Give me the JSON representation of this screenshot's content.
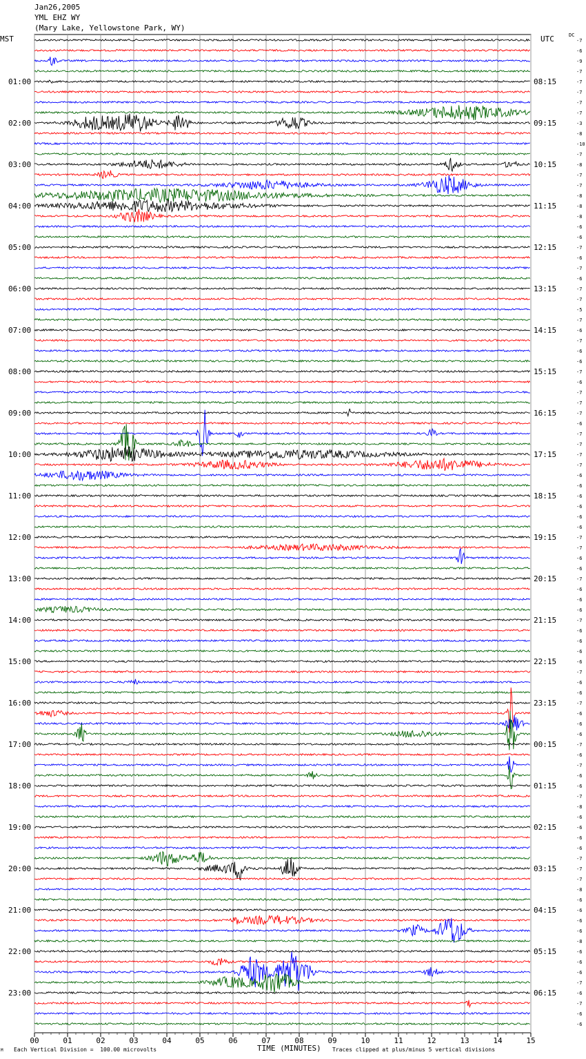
{
  "header": {
    "date": "Jan26,2005",
    "station": "YML EHZ WY",
    "location": "(Mary Lake, Yellowstone Park, WY)"
  },
  "left_axis_title": "MST",
  "right_axis_title": "UTC",
  "dc_label": "DC",
  "footer": {
    "scale_note": "Each Vertical Division =  100.00 microvolts",
    "clip_note": "Traces clipped at plus/minus 5 vertical divisions",
    "corner_mark": "M"
  },
  "chart_data": {
    "type": "line",
    "title": "",
    "xlabel": "TIME (MINUTES)",
    "ylabel": "",
    "xlim": [
      0,
      15
    ],
    "x_ticks": [
      "00",
      "01",
      "02",
      "03",
      "04",
      "05",
      "06",
      "07",
      "08",
      "09",
      "10",
      "11",
      "12",
      "13",
      "14",
      "15"
    ],
    "grid": true,
    "left_time_labels": [
      "01:00",
      "02:00",
      "03:00",
      "04:00",
      "05:00",
      "06:00",
      "07:00",
      "08:00",
      "09:00",
      "10:00",
      "11:00",
      "12:00",
      "13:00",
      "14:00",
      "15:00",
      "16:00",
      "17:00",
      "18:00",
      "19:00",
      "20:00",
      "21:00",
      "22:00",
      "23:00"
    ],
    "right_time_labels": [
      "08:15",
      "09:15",
      "10:15",
      "11:15",
      "12:15",
      "13:15",
      "14:15",
      "15:15",
      "16:15",
      "17:15",
      "18:15",
      "19:15",
      "20:15",
      "21:15",
      "22:15",
      "23:15",
      "00:15",
      "01:15",
      "02:15",
      "03:15",
      "04:15",
      "05:15",
      "06:15"
    ],
    "trace_colors": [
      "#000000",
      "#ff0000",
      "#0000ff",
      "#006400"
    ],
    "trace_count": 96,
    "dc_offsets": [
      "-7",
      "-6",
      "-9",
      "-7",
      "-7",
      "-7",
      "-7",
      "-7",
      "-3",
      "-8",
      "-10",
      "-7",
      "-8",
      "-7",
      "-7",
      "-8",
      "-8",
      "-8",
      "-6",
      "-6",
      "-7",
      "-6",
      "-7",
      "-6",
      "-7",
      "-7",
      "-5",
      "-7",
      "-6",
      "-7",
      "-6",
      "-6",
      "-7",
      "-6",
      "-7",
      "-7",
      "-7",
      "-6",
      "-7",
      "-7",
      "-7",
      "-7",
      "-6",
      "-6",
      "-6",
      "-6",
      "-6",
      "-6",
      "-7",
      "-7",
      "-6",
      "-6",
      "-7",
      "-6",
      "-6",
      "-6",
      "-7",
      "-6",
      "-6",
      "-6",
      "-6",
      "-7",
      "-6",
      "-6",
      "-7",
      "-6",
      "-6",
      "-6",
      "-7",
      "-6",
      "-7",
      "-6",
      "-6",
      "-7",
      "-8",
      "-6",
      "-6",
      "-6",
      "-6",
      "-7",
      "-7",
      "-7",
      "-8",
      "-6",
      "-6",
      "-6",
      "-6",
      "-8",
      "-6",
      "-6",
      "-6",
      "-7",
      "-6",
      "-7",
      "-6",
      "-6"
    ],
    "events": [
      {
        "trace": 2,
        "minute": 0.55,
        "amplitude": 7,
        "width": 0.3
      },
      {
        "trace": 4,
        "minute": 0.5,
        "amplitude": 4,
        "width": 0.1
      },
      {
        "trace": 7,
        "minute": 13.0,
        "amplitude": 10,
        "width": 3.5
      },
      {
        "trace": 8,
        "minute": 3.0,
        "amplitude": 14,
        "width": 1.4
      },
      {
        "trace": 8,
        "minute": 4.4,
        "amplitude": 14,
        "width": 0.6
      },
      {
        "trace": 8,
        "minute": 7.8,
        "amplitude": 10,
        "width": 1.0
      },
      {
        "trace": 8,
        "minute": 1.8,
        "amplitude": 10,
        "width": 1.5
      },
      {
        "trace": 12,
        "minute": 3.5,
        "amplitude": 6,
        "width": 2.0
      },
      {
        "trace": 12,
        "minute": 12.6,
        "amplitude": 9,
        "width": 0.5
      },
      {
        "trace": 12,
        "minute": 14.4,
        "amplitude": 7,
        "width": 0.4
      },
      {
        "trace": 13,
        "minute": 2.2,
        "amplitude": 6,
        "width": 0.6
      },
      {
        "trace": 14,
        "minute": 12.5,
        "amplitude": 13,
        "width": 1.5
      },
      {
        "trace": 14,
        "minute": 7.0,
        "amplitude": 6,
        "width": 3.0
      },
      {
        "trace": 15,
        "minute": 4.0,
        "amplitude": 9,
        "width": 8.0
      },
      {
        "trace": 16,
        "minute": 3.5,
        "amplitude": 8,
        "width": 6.0
      },
      {
        "trace": 17,
        "minute": 3.1,
        "amplitude": 9,
        "width": 1.2
      },
      {
        "trace": 36,
        "minute": 9.5,
        "amplitude": 10,
        "width": 0.08
      },
      {
        "trace": 38,
        "minute": 5.1,
        "amplitude": 40,
        "width": 0.3
      },
      {
        "trace": 38,
        "minute": 12.0,
        "amplitude": 6,
        "width": 0.3
      },
      {
        "trace": 38,
        "minute": 6.2,
        "amplitude": 7,
        "width": 0.2
      },
      {
        "trace": 39,
        "minute": 2.8,
        "amplitude": 30,
        "width": 0.5
      },
      {
        "trace": 39,
        "minute": 4.5,
        "amplitude": 5,
        "width": 0.6
      },
      {
        "trace": 40,
        "minute": 2.6,
        "amplitude": 10,
        "width": 3.0
      },
      {
        "trace": 40,
        "minute": 8.0,
        "amplitude": 6,
        "width": 6.0
      },
      {
        "trace": 41,
        "minute": 12.3,
        "amplitude": 8,
        "width": 3.0
      },
      {
        "trace": 41,
        "minute": 6.0,
        "amplitude": 6,
        "width": 2.5
      },
      {
        "trace": 42,
        "minute": 1.5,
        "amplitude": 7,
        "width": 2.5
      },
      {
        "trace": 49,
        "minute": 8.5,
        "amplitude": 4,
        "width": 4.0
      },
      {
        "trace": 50,
        "minute": 12.9,
        "amplitude": 14,
        "width": 0.25
      },
      {
        "trace": 55,
        "minute": 1.0,
        "amplitude": 4,
        "width": 2.0
      },
      {
        "trace": 62,
        "minute": 3.0,
        "amplitude": 4,
        "width": 0.3
      },
      {
        "trace": 65,
        "minute": 14.4,
        "amplitude": 40,
        "width": 0.2
      },
      {
        "trace": 65,
        "minute": 0.5,
        "amplitude": 4,
        "width": 1.0
      },
      {
        "trace": 66,
        "minute": 14.5,
        "amplitude": 12,
        "width": 0.5
      },
      {
        "trace": 67,
        "minute": 14.4,
        "amplitude": 40,
        "width": 0.3
      },
      {
        "trace": 67,
        "minute": 1.4,
        "amplitude": 15,
        "width": 0.3
      },
      {
        "trace": 67,
        "minute": 11.5,
        "amplitude": 5,
        "width": 1.5
      },
      {
        "trace": 70,
        "minute": 14.4,
        "amplitude": 20,
        "width": 0.2
      },
      {
        "trace": 71,
        "minute": 14.4,
        "amplitude": 20,
        "width": 0.2
      },
      {
        "trace": 71,
        "minute": 8.4,
        "amplitude": 5,
        "width": 0.3
      },
      {
        "trace": 79,
        "minute": 4.0,
        "amplitude": 11,
        "width": 1.0
      },
      {
        "trace": 79,
        "minute": 5.0,
        "amplitude": 8,
        "width": 0.7
      },
      {
        "trace": 80,
        "minute": 7.7,
        "amplitude": 18,
        "width": 0.5
      },
      {
        "trace": 80,
        "minute": 6.2,
        "amplitude": 13,
        "width": 0.4
      },
      {
        "trace": 80,
        "minute": 5.8,
        "amplitude": 6,
        "width": 1.5
      },
      {
        "trace": 85,
        "minute": 7.2,
        "amplitude": 6,
        "width": 2.5
      },
      {
        "trace": 85,
        "minute": 6.1,
        "amplitude": 5,
        "width": 0.2
      },
      {
        "trace": 86,
        "minute": 12.6,
        "amplitude": 22,
        "width": 0.9
      },
      {
        "trace": 86,
        "minute": 11.5,
        "amplitude": 8,
        "width": 0.6
      },
      {
        "trace": 89,
        "minute": 5.6,
        "amplitude": 6,
        "width": 0.6
      },
      {
        "trace": 90,
        "minute": 6.6,
        "amplitude": 22,
        "width": 0.9
      },
      {
        "trace": 90,
        "minute": 7.8,
        "amplitude": 30,
        "width": 1.2
      },
      {
        "trace": 90,
        "minute": 12.0,
        "amplitude": 6,
        "width": 0.5
      },
      {
        "trace": 91,
        "minute": 7.3,
        "amplitude": 16,
        "width": 1.2
      },
      {
        "trace": 91,
        "minute": 6.0,
        "amplitude": 8,
        "width": 1.5
      },
      {
        "trace": 93,
        "minute": 13.1,
        "amplitude": 7,
        "width": 0.2
      }
    ]
  }
}
